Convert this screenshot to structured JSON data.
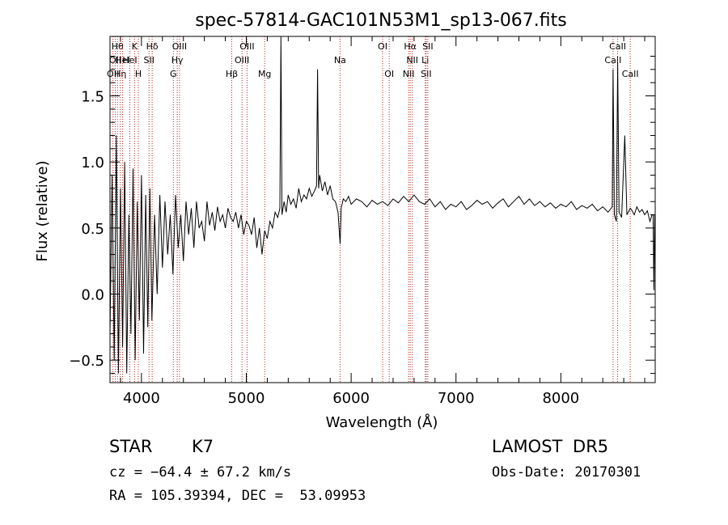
{
  "chart_data": {
    "type": "line",
    "title": "spec-57814-GAC101N53M1_sp13-067.fits",
    "xlabel": "Wavelength (Å)",
    "ylabel": "Flux (relative)",
    "xlim": [
      3700,
      8900
    ],
    "ylim": [
      -0.67,
      1.95
    ],
    "xticks": [
      4000,
      5000,
      6000,
      7000,
      8000
    ],
    "xtick_labels": [
      "4000",
      "5000",
      "6000",
      "7000",
      "8000"
    ],
    "yticks": [
      -0.5,
      0.0,
      0.5,
      1.0,
      1.5
    ],
    "ytick_labels": [
      "−0.5",
      "0.0",
      "0.5",
      "1.0",
      "1.5"
    ],
    "grid": false,
    "series": [
      {
        "x": [
          3700,
          3720,
          3740,
          3760,
          3780,
          3800,
          3820,
          3840,
          3860,
          3880,
          3900,
          3920,
          3940,
          3960,
          3980,
          4000,
          4020,
          4040,
          4060,
          4080,
          4100,
          4125,
          4150,
          4175,
          4200,
          4225,
          4250,
          4275,
          4300,
          4325,
          4350,
          4375,
          4400,
          4425,
          4450,
          4475,
          4500,
          4525,
          4550,
          4575,
          4600,
          4625,
          4650,
          4675,
          4700,
          4725,
          4750,
          4775,
          4800,
          4825,
          4850,
          4875,
          4900,
          4925,
          4950,
          4975,
          5000,
          5025,
          5050,
          5075,
          5100,
          5125,
          5150,
          5175,
          5200,
          5225,
          5250,
          5275,
          5300,
          5320,
          5330,
          5340,
          5360,
          5380,
          5400,
          5425,
          5450,
          5475,
          5500,
          5525,
          5550,
          5575,
          5600,
          5625,
          5650,
          5670,
          5680,
          5690,
          5700,
          5725,
          5750,
          5775,
          5800,
          5825,
          5850,
          5875,
          5895,
          5905,
          5925,
          5950,
          5975,
          6000,
          6050,
          6100,
          6150,
          6200,
          6250,
          6300,
          6350,
          6400,
          6450,
          6500,
          6550,
          6600,
          6650,
          6700,
          6750,
          6800,
          6850,
          6900,
          6950,
          7000,
          7050,
          7100,
          7150,
          7200,
          7250,
          7300,
          7350,
          7400,
          7450,
          7500,
          7550,
          7600,
          7650,
          7700,
          7750,
          7800,
          7850,
          7900,
          7950,
          8000,
          8050,
          8100,
          8150,
          8200,
          8250,
          8300,
          8350,
          8400,
          8450,
          8490,
          8498,
          8510,
          8530,
          8542,
          8555,
          8580,
          8610,
          8630,
          8662,
          8680,
          8700,
          8725,
          8750,
          8775,
          8800,
          8825,
          8850,
          8870,
          8880,
          8888,
          8895
        ],
        "y": [
          -0.3,
          0.9,
          -0.5,
          1.2,
          -0.6,
          0.8,
          -0.4,
          1.0,
          -0.6,
          0.6,
          -0.3,
          0.95,
          -0.5,
          0.7,
          -0.2,
          0.9,
          -0.45,
          0.75,
          -0.25,
          0.8,
          -0.2,
          0.6,
          0.0,
          0.75,
          0.2,
          0.7,
          0.3,
          0.6,
          0.15,
          0.75,
          0.35,
          0.6,
          0.25,
          0.7,
          0.45,
          0.65,
          0.35,
          0.7,
          0.5,
          0.55,
          0.4,
          0.7,
          0.52,
          0.62,
          0.48,
          0.66,
          0.55,
          0.6,
          0.5,
          0.65,
          0.58,
          0.55,
          0.62,
          0.5,
          0.6,
          0.45,
          0.55,
          0.52,
          0.45,
          0.58,
          0.35,
          0.5,
          0.3,
          0.48,
          0.42,
          0.55,
          0.5,
          0.62,
          0.58,
          0.65,
          1.95,
          0.6,
          0.7,
          0.62,
          0.75,
          0.68,
          0.72,
          0.65,
          0.8,
          0.7,
          0.75,
          0.72,
          0.8,
          0.74,
          0.78,
          0.82,
          1.7,
          0.8,
          0.9,
          0.78,
          0.85,
          0.75,
          0.82,
          0.72,
          0.7,
          0.62,
          0.38,
          0.65,
          0.72,
          0.7,
          0.74,
          0.68,
          0.72,
          0.7,
          0.66,
          0.71,
          0.68,
          0.7,
          0.67,
          0.72,
          0.69,
          0.74,
          0.7,
          0.75,
          0.7,
          0.68,
          0.72,
          0.66,
          0.7,
          0.64,
          0.68,
          0.66,
          0.7,
          0.64,
          0.67,
          0.71,
          0.68,
          0.7,
          0.65,
          0.69,
          0.72,
          0.66,
          0.7,
          0.74,
          0.68,
          0.72,
          0.67,
          0.7,
          0.66,
          0.69,
          0.65,
          0.68,
          0.66,
          0.7,
          0.64,
          0.67,
          0.65,
          0.68,
          0.63,
          0.66,
          0.62,
          0.66,
          1.7,
          0.6,
          0.55,
          1.75,
          0.62,
          0.58,
          1.2,
          0.6,
          0.65,
          0.63,
          0.6,
          0.66,
          0.62,
          0.64,
          0.6,
          0.63,
          0.55,
          0.6,
          0.6,
          0.03,
          0.6
        ]
      }
    ],
    "line_markers": [
      {
        "x": 3728,
        "row": 0,
        "label": "OII"
      },
      {
        "x": 3750,
        "row": 1,
        "label": "OII"
      },
      {
        "x": 3771,
        "row": 2,
        "label": "Hθ"
      },
      {
        "x": 3798,
        "row": 0,
        "label": "Hη"
      },
      {
        "x": 3820,
        "row": 1,
        "label": "HeI"
      },
      {
        "x": 3889,
        "row": 1,
        "label": "HeI"
      },
      {
        "x": 3934,
        "row": 2,
        "label": "K"
      },
      {
        "x": 3970,
        "row": 0,
        "label": "H"
      },
      {
        "x": 4072,
        "row": 1,
        "label": "SII"
      },
      {
        "x": 4102,
        "row": 2,
        "label": "Hδ"
      },
      {
        "x": 4304,
        "row": 0,
        "label": "G"
      },
      {
        "x": 4341,
        "row": 1,
        "label": "Hγ"
      },
      {
        "x": 4363,
        "row": 2,
        "label": "OIII"
      },
      {
        "x": 4861,
        "row": 0,
        "label": "Hβ"
      },
      {
        "x": 4959,
        "row": 1,
        "label": "OIII"
      },
      {
        "x": 5007,
        "row": 2,
        "label": "OIII"
      },
      {
        "x": 5175,
        "row": 0,
        "label": "Mg"
      },
      {
        "x": 5894,
        "row": 1,
        "label": "Na"
      },
      {
        "x": 6300,
        "row": 2,
        "label": "OI"
      },
      {
        "x": 6363,
        "row": 0,
        "label": "OI"
      },
      {
        "x": 6548,
        "row": 0,
        "label": "NII"
      },
      {
        "x": 6563,
        "row": 2,
        "label": "Hα"
      },
      {
        "x": 6583,
        "row": 1,
        "label": "NII"
      },
      {
        "x": 6707,
        "row": 1,
        "label": "Li"
      },
      {
        "x": 6716,
        "row": 0,
        "label": "SII"
      },
      {
        "x": 6731,
        "row": 2,
        "label": "SII"
      },
      {
        "x": 8498,
        "row": 1,
        "label": "CaII"
      },
      {
        "x": 8542,
        "row": 2,
        "label": "CaII"
      },
      {
        "x": 8662,
        "row": 0,
        "label": "CaII"
      }
    ]
  },
  "info": {
    "class_label": "STAR",
    "subclass_label": "K7",
    "survey": "LAMOST DR5",
    "cz": "cz = −64.4 ± 67.2 km/s",
    "obs_date": "Obs-Date: 20170301",
    "radec": "RA = 105.39394, DEC =  53.09953"
  },
  "colors": {
    "spectrum": "#000000",
    "marker_lines": "#b22222"
  }
}
